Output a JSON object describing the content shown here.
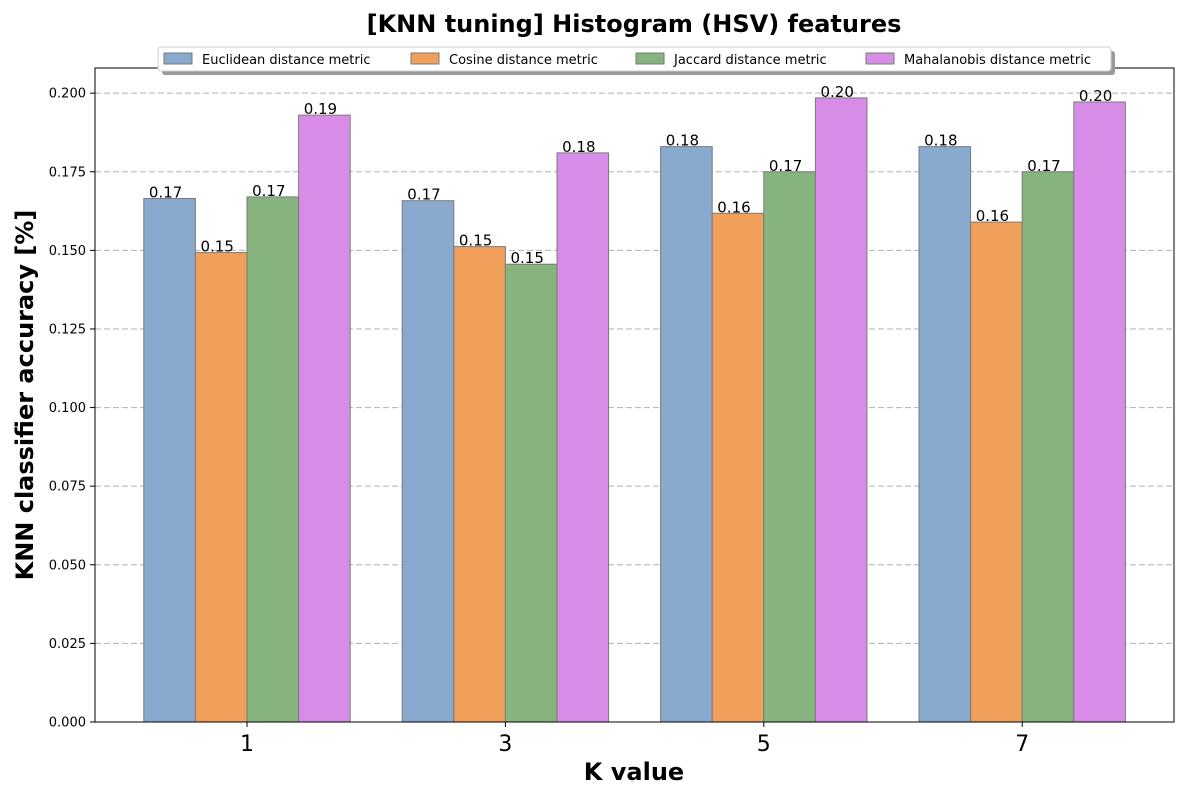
{
  "chart_data": {
    "type": "bar",
    "title": "[KNN tuning] Histogram (HSV) features",
    "xlabel": "K value",
    "ylabel": "KNN classifier accuracy [%]",
    "categories": [
      "1",
      "3",
      "5",
      "7"
    ],
    "ylim": [
      0,
      0.208
    ],
    "yticks": [
      "0.000",
      "0.025",
      "0.050",
      "0.075",
      "0.100",
      "0.125",
      "0.150",
      "0.175",
      "0.200"
    ],
    "ytick_values": [
      0,
      0.025,
      0.05,
      0.075,
      0.1,
      0.125,
      0.15,
      0.175,
      0.2
    ],
    "grid": "horizontal dashed",
    "legend_position": "top-center",
    "series": [
      {
        "name": "Euclidean distance metric",
        "color": "#8aa9ce",
        "values": [
          0.1665,
          0.1658,
          0.183,
          0.183
        ],
        "labels": [
          "0.17",
          "0.17",
          "0.18",
          "0.18"
        ]
      },
      {
        "name": "Cosine distance metric",
        "color": "#f0a05a",
        "values": [
          0.1493,
          0.1512,
          0.1618,
          0.159
        ],
        "labels": [
          "0.15",
          "0.15",
          "0.16",
          "0.16"
        ]
      },
      {
        "name": "Jaccard distance metric",
        "color": "#87b37f",
        "values": [
          0.167,
          0.1456,
          0.175,
          0.175
        ],
        "labels": [
          "0.17",
          "0.15",
          "0.17",
          "0.17"
        ]
      },
      {
        "name": "Mahalanobis distance metric",
        "color": "#d78de7",
        "values": [
          0.193,
          0.181,
          0.1985,
          0.1972
        ],
        "labels": [
          "0.19",
          "0.18",
          "0.20",
          "0.20"
        ]
      }
    ]
  }
}
